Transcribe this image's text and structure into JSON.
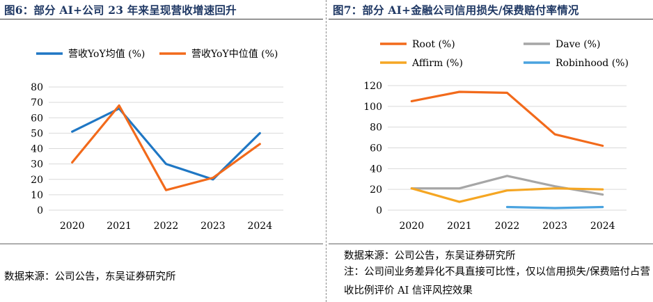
{
  "left": {
    "title": "图6：部分 AI+公司 23 年来呈现营收增速回升",
    "source": "数据来源：公司公告，东吴证券研究所",
    "chart_data": {
      "type": "line",
      "categories": [
        "2020",
        "2021",
        "2022",
        "2023",
        "2024"
      ],
      "ylim": [
        0,
        80
      ],
      "yticks": [
        "0",
        "10",
        "20",
        "30",
        "40",
        "50",
        "60",
        "70",
        "80"
      ],
      "grid": true,
      "legend": "top",
      "series": [
        {
          "name": "营收YoY均值 (%)",
          "color": "#1f77c4",
          "values": [
            51,
            66,
            30,
            20,
            50
          ]
        },
        {
          "name": "营收YoY中位值 (%)",
          "color": "#f26a1b",
          "values": [
            31,
            68,
            13,
            21,
            43
          ]
        }
      ]
    }
  },
  "right": {
    "title": "图7：部分 AI+金融公司信用损失/保费赔付率情况",
    "source": "数据来源：公司公告，东吴证券研究所",
    "note": "注：公司间业务差异化不具直接可比性，仅以信用损失/保费赔付占营收比例评价 AI 信评风控效果",
    "chart_data": {
      "type": "line",
      "categories": [
        "2020",
        "2021",
        "2022",
        "2023",
        "2024"
      ],
      "ylim": [
        0,
        120
      ],
      "yticks": [
        "0",
        "20",
        "40",
        "60",
        "80",
        "100",
        "120"
      ],
      "grid": true,
      "legend": "top",
      "series": [
        {
          "name": "Root (%)",
          "color": "#f26a1b",
          "values": [
            105,
            114,
            113,
            73,
            62
          ]
        },
        {
          "name": "Dave (%)",
          "color": "#a6a6a6",
          "values": [
            21,
            21,
            33,
            23,
            15
          ]
        },
        {
          "name": "Affirm (%)",
          "color": "#f5a623",
          "values": [
            21,
            8,
            19,
            21,
            20
          ]
        },
        {
          "name": "Robinhood (%)",
          "color": "#4aa3df",
          "values": [
            null,
            null,
            3,
            2,
            3
          ]
        }
      ]
    }
  }
}
